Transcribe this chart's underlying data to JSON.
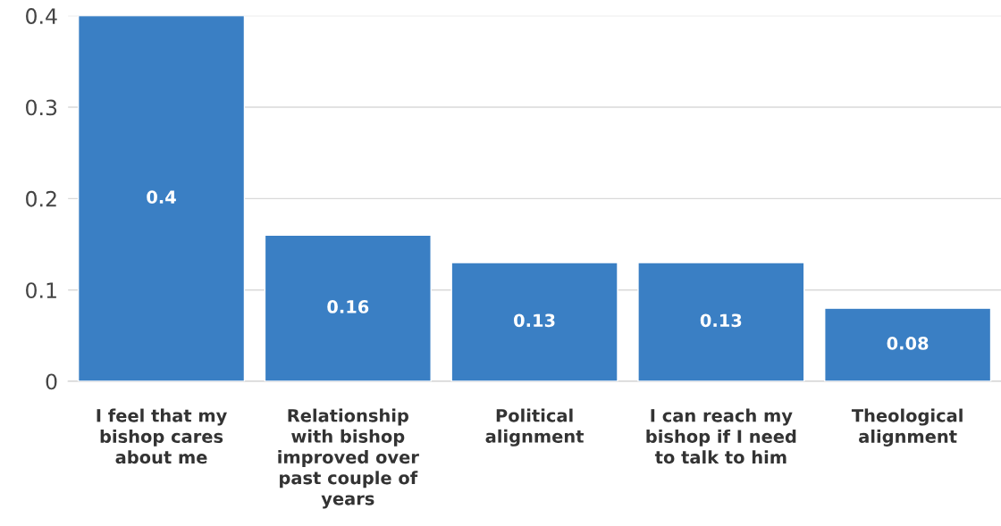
{
  "chart_data": {
    "type": "bar",
    "categories": [
      "I feel that my\nbishop cares\nabout me",
      "Relationship\nwith bishop\nimproved over\npast couple of\nyears",
      "Political\nalignment",
      "I can reach my\nbishop if I need\nto talk to him",
      "Theological\nalignment"
    ],
    "values": [
      0.4,
      0.16,
      0.13,
      0.13,
      0.08
    ],
    "color": "#3a7fc4",
    "ylim": [
      0,
      0.4
    ],
    "yticks": [
      0,
      0.1,
      0.2,
      0.3,
      0.4
    ],
    "grid": "y",
    "data_labels": true
  }
}
